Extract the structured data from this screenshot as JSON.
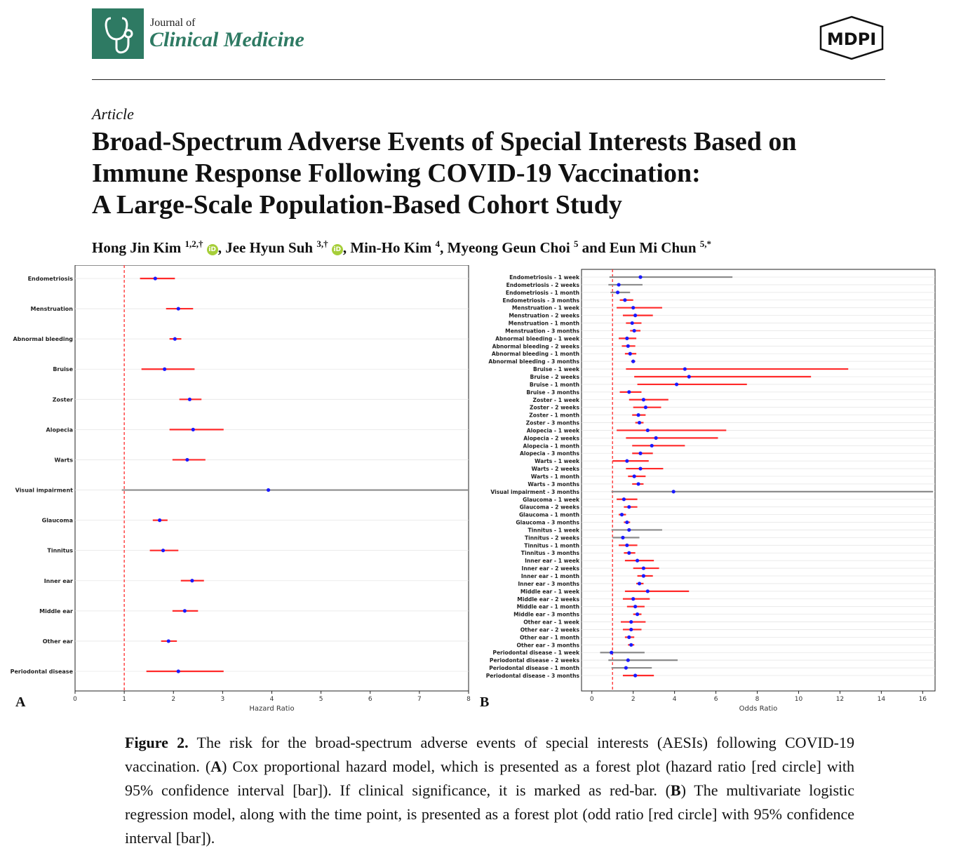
{
  "header": {
    "journal_of": "Journal of",
    "journal_name": "Clinical Medicine",
    "publisher": "MDPI",
    "logo_icon": "stethoscope-icon",
    "brand_color": "#2e7a63"
  },
  "article": {
    "type": "Article",
    "title_lines": [
      "Broad-Spectrum Adverse Events of Special Interests Based on",
      "Immune Response Following COVID-19 Vaccination:",
      "A Large-Scale Population-Based Cohort Study"
    ],
    "authors": [
      {
        "name": "Hong Jin Kim",
        "aff": "1,2,†",
        "orcid": true,
        "sep": ", "
      },
      {
        "name": "Jee Hyun Suh",
        "aff": "3,†",
        "orcid": true,
        "sep": ", "
      },
      {
        "name": "Min-Ho Kim",
        "aff": "4",
        "orcid": false,
        "sep": ", "
      },
      {
        "name": "Myeong Geun Choi",
        "aff": "5",
        "orcid": false,
        "sep": " and "
      },
      {
        "name": "Eun Mi Chun",
        "aff": "5,*",
        "orcid": false,
        "sep": ""
      }
    ],
    "orcid_label": "iD"
  },
  "panel_labels": {
    "a": "A",
    "b": "B"
  },
  "caption": {
    "figure_label": "Figure 2.",
    "text_1": " The risk for the broad-spectrum adverse events of special interests (AESIs) following COVID-19 vaccination. (",
    "a": "A",
    "text_2": ") Cox proportional hazard model, which is presented as a forest plot (hazard ratio [red circle] with 95% confidence interval [bar]). If clinical significance, it is marked as red-bar. (",
    "b": "B",
    "text_3": ") The multivariate logistic regression model, along with the time point, is presented as a forest plot (odd ratio [red circle] with 95% confidence interval [bar])."
  },
  "colors": {
    "significant": "#ff2a2a",
    "nonsignificant": "#8c8c8c",
    "point": "#1a1aff",
    "reference": "#ff2a2a"
  },
  "chart_data": [
    {
      "type": "forest",
      "xlabel": "Hazard Ratio",
      "xlim": [
        0,
        8
      ],
      "xticks": [
        0,
        1,
        2,
        3,
        4,
        5,
        6,
        7,
        8
      ],
      "reference_line": 1,
      "categories": [
        "Endometriosis",
        "Menstruation",
        "Abnormal bleeding",
        "Bruise",
        "Zoster",
        "Alopecia",
        "Warts",
        "Visual impairment",
        "Glaucoma",
        "Tinnitus",
        "Inner ear",
        "Middle ear",
        "Other ear",
        "Periodontal disease"
      ],
      "estimate": [
        1.63,
        2.1,
        2.03,
        1.82,
        2.33,
        2.4,
        2.28,
        3.93,
        1.72,
        1.79,
        2.38,
        2.23,
        1.9,
        2.1
      ],
      "ci_low": [
        1.32,
        1.85,
        1.92,
        1.35,
        2.12,
        1.92,
        1.98,
        0.95,
        1.58,
        1.52,
        2.15,
        1.98,
        1.75,
        1.45
      ],
      "ci_high": [
        2.03,
        2.4,
        2.16,
        2.43,
        2.57,
        3.02,
        2.65,
        8.0,
        1.88,
        2.1,
        2.62,
        2.5,
        2.07,
        3.02
      ],
      "significant": [
        true,
        true,
        true,
        true,
        true,
        true,
        true,
        false,
        true,
        true,
        true,
        true,
        true,
        true
      ]
    },
    {
      "type": "forest",
      "xlabel": "Odds Ratio",
      "xlim": [
        -0.5,
        16.6
      ],
      "xticks": [
        0,
        2,
        4,
        6,
        8,
        10,
        12,
        14,
        16
      ],
      "reference_line": 1,
      "categories": [
        "Endometriosis - 1 week",
        "Endometriosis - 2 weeks",
        "Endometriosis - 1 month",
        "Endometriosis - 3 months",
        "Menstruation - 1 week",
        "Menstruation - 2 weeks",
        "Menstruation - 1 month",
        "Menstruation - 3 months",
        "Abnormal bleeding - 1 week",
        "Abnormal bleeding - 2 weeks",
        "Abnormal bleeding - 1 month",
        "Abnormal bleeding - 3 months",
        "Bruise - 1 week",
        "Bruise - 2 weeks",
        "Bruise - 1 month",
        "Bruise - 3 months",
        "Zoster - 1 week",
        "Zoster - 2 weeks",
        "Zoster - 1 month",
        "Zoster - 3 months",
        "Alopecia - 1 week",
        "Alopecia - 2 weeks",
        "Alopecia - 1 month",
        "Alopecia - 3 months",
        "Warts - 1 week",
        "Warts - 2 weeks",
        "Warts - 1 month",
        "Warts - 3 months",
        "Visual impairment - 3 months",
        "Glaucoma - 1 week",
        "Glaucoma - 2 weeks",
        "Glaucoma - 1 month",
        "Glaucoma - 3 months",
        "Tinnitus - 1 week",
        "Tinnitus - 2 weeks",
        "Tinnitus - 1 month",
        "Tinnitus - 3 months",
        "Inner ear - 1 week",
        "Inner ear - 2 weeks",
        "Inner ear - 1 month",
        "Inner ear - 3 months",
        "Middle ear - 1 week",
        "Middle ear - 2 weeks",
        "Middle ear - 1 month",
        "Middle ear - 3 months",
        "Other ear - 1 week",
        "Other ear - 2 weeks",
        "Other ear - 1 month",
        "Other ear - 3 months",
        "Periodontal disease - 1 week",
        "Periodontal disease - 2 weeks",
        "Periodontal disease - 1 month",
        "Periodontal disease - 3 months"
      ],
      "estimate": [
        2.35,
        1.3,
        1.25,
        1.6,
        2.0,
        2.1,
        1.95,
        2.05,
        1.7,
        1.75,
        1.85,
        2.0,
        4.5,
        4.7,
        4.1,
        1.8,
        2.5,
        2.6,
        2.25,
        2.3,
        2.7,
        3.1,
        2.9,
        2.35,
        1.7,
        2.35,
        2.05,
        2.25,
        3.95,
        1.55,
        1.8,
        1.45,
        1.7,
        1.8,
        1.5,
        1.7,
        1.8,
        2.2,
        2.5,
        2.5,
        2.3,
        2.7,
        2.0,
        2.1,
        2.2,
        1.9,
        1.9,
        1.8,
        1.9,
        0.95,
        1.75,
        1.65,
        2.1
      ],
      "ci_low": [
        0.85,
        0.8,
        0.9,
        1.35,
        1.2,
        1.5,
        1.65,
        1.85,
        1.3,
        1.45,
        1.6,
        1.9,
        1.65,
        2.05,
        2.2,
        1.35,
        1.8,
        2.0,
        1.95,
        2.1,
        1.2,
        1.65,
        1.95,
        1.95,
        1.0,
        1.65,
        1.75,
        1.95,
        0.95,
        1.2,
        1.55,
        1.3,
        1.55,
        0.95,
        1.0,
        1.3,
        1.55,
        1.6,
        2.0,
        2.2,
        2.15,
        1.6,
        1.5,
        1.7,
        2.0,
        1.4,
        1.5,
        1.6,
        1.75,
        0.4,
        0.8,
        0.95,
        1.5
      ],
      "ci_high": [
        6.8,
        2.45,
        1.85,
        2.0,
        3.4,
        2.95,
        2.4,
        2.35,
        2.15,
        2.1,
        2.15,
        2.1,
        12.4,
        10.6,
        7.5,
        2.4,
        3.7,
        3.35,
        2.6,
        2.5,
        6.5,
        6.1,
        4.5,
        2.95,
        2.75,
        3.45,
        2.6,
        2.5,
        16.5,
        2.2,
        2.2,
        1.65,
        1.85,
        3.4,
        2.3,
        2.2,
        2.1,
        3.0,
        3.25,
        2.95,
        2.5,
        4.7,
        2.8,
        2.55,
        2.4,
        2.6,
        2.4,
        2.05,
        2.05,
        2.55,
        4.15,
        2.9,
        3.0
      ],
      "significant": [
        false,
        false,
        false,
        true,
        true,
        true,
        true,
        true,
        true,
        true,
        true,
        true,
        true,
        true,
        true,
        true,
        true,
        true,
        true,
        true,
        true,
        true,
        true,
        true,
        true,
        true,
        true,
        true,
        false,
        true,
        true,
        true,
        true,
        false,
        false,
        true,
        true,
        true,
        true,
        true,
        true,
        true,
        true,
        true,
        true,
        true,
        true,
        true,
        true,
        false,
        false,
        false,
        true
      ]
    }
  ]
}
